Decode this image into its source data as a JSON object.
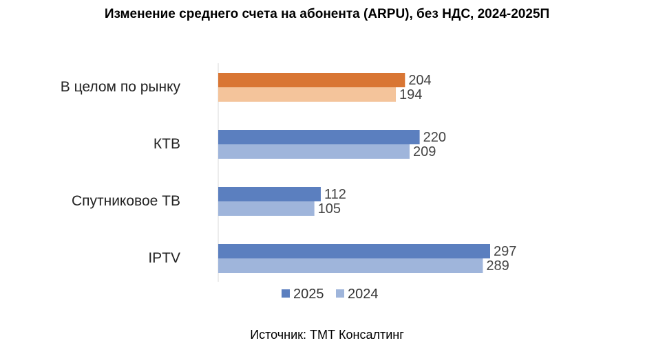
{
  "chart_data": {
    "type": "bar",
    "orientation": "horizontal",
    "title": "Изменение среднего счета на абонента (ARPU), без НДС, 2024-2025П",
    "categories": [
      "В целом по рынку",
      "КТВ",
      "Спутниковое ТВ",
      "IPTV"
    ],
    "series": [
      {
        "name": "2025",
        "values": [
          204,
          220,
          112,
          297
        ]
      },
      {
        "name": "2024",
        "values": [
          194,
          209,
          105,
          289
        ]
      }
    ],
    "colors": {
      "2025": "#5B7FBF",
      "2024": "#9FB5DB",
      "highlight_2025": "#D97634",
      "highlight_2024": "#F4C49B"
    },
    "highlight_category": "В целом по рынку",
    "xlim": [
      0,
      300
    ],
    "xlabel": "",
    "ylabel": "",
    "legend_position": "bottom"
  },
  "source": "Источник: ТМТ Консалтинг"
}
